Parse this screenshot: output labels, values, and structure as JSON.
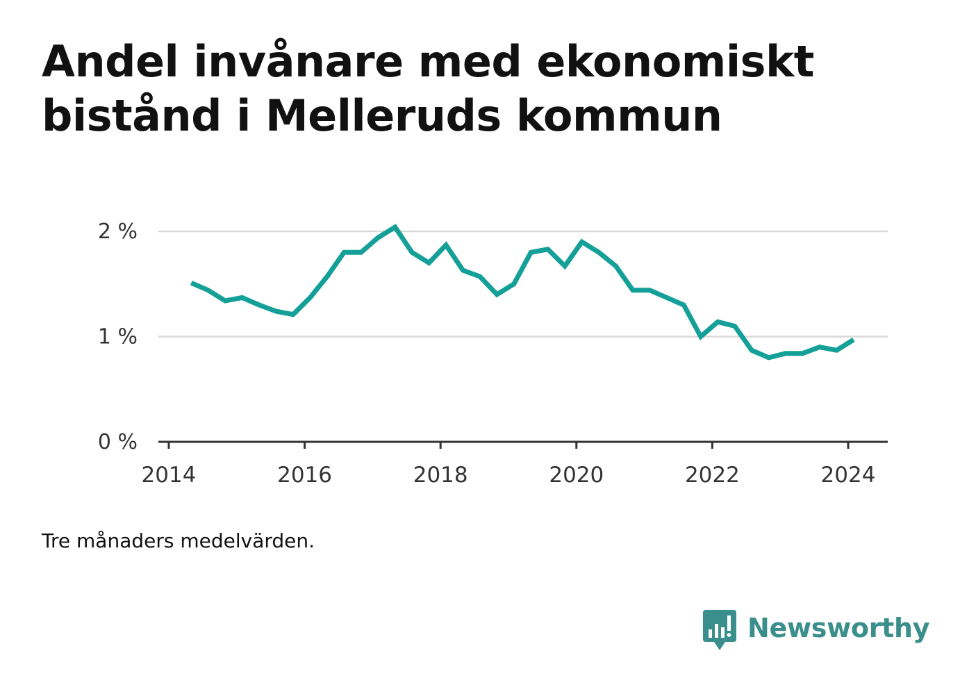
{
  "title": "Andel invånare med ekonomiskt bistånd i Melleruds kommun",
  "footnote": "Tre månaders medelvärden.",
  "brand": {
    "name": "Newsworthy",
    "logo_icon": "newsworthy-bar-chart-speech-bubble-icon",
    "color": "#3a8f8c"
  },
  "colors": {
    "line": "#14a098",
    "grid": "#d9d9d9",
    "axis": "#333333",
    "text": "#111111"
  },
  "chart_data": {
    "type": "line",
    "title": "Andel invånare med ekonomiskt bistånd i Melleruds kommun",
    "xlabel": "",
    "ylabel": "",
    "xlim": [
      2014,
      2024.6
    ],
    "ylim": [
      0,
      2
    ],
    "x_ticks": [
      2014,
      2016,
      2018,
      2020,
      2022,
      2024
    ],
    "x_tick_labels": [
      "2014",
      "2016",
      "2018",
      "2020",
      "2022",
      "2024"
    ],
    "y_ticks": [
      0,
      1,
      2
    ],
    "y_tick_labels": [
      "0 %",
      "1 %",
      "2 %"
    ],
    "grid": "horizontal",
    "legend": "none",
    "series": [
      {
        "x": [
          2014.33,
          2014.58,
          2014.83,
          2015.08,
          2015.33,
          2015.58,
          2015.83,
          2016.08,
          2016.33,
          2016.58,
          2016.83,
          2017.08,
          2017.33,
          2017.58,
          2017.83,
          2018.08,
          2018.33,
          2018.58,
          2018.83,
          2019.08,
          2019.33,
          2019.58,
          2019.83,
          2020.08,
          2020.33,
          2020.58,
          2020.83,
          2021.08,
          2021.33,
          2021.58,
          2021.83,
          2022.08,
          2022.33,
          2022.58,
          2022.83,
          2023.08,
          2023.33,
          2023.58,
          2023.83,
          2024.08
        ],
        "values": [
          1.51,
          1.44,
          1.34,
          1.37,
          1.3,
          1.24,
          1.21,
          1.37,
          1.57,
          1.8,
          1.8,
          1.94,
          2.04,
          1.8,
          1.7,
          1.87,
          1.63,
          1.57,
          1.4,
          1.5,
          1.8,
          1.83,
          1.67,
          1.9,
          1.8,
          1.67,
          1.44,
          1.44,
          1.37,
          1.3,
          1.0,
          1.14,
          1.1,
          0.87,
          0.8,
          0.84,
          0.84,
          0.9,
          0.87,
          0.97
        ]
      }
    ]
  }
}
